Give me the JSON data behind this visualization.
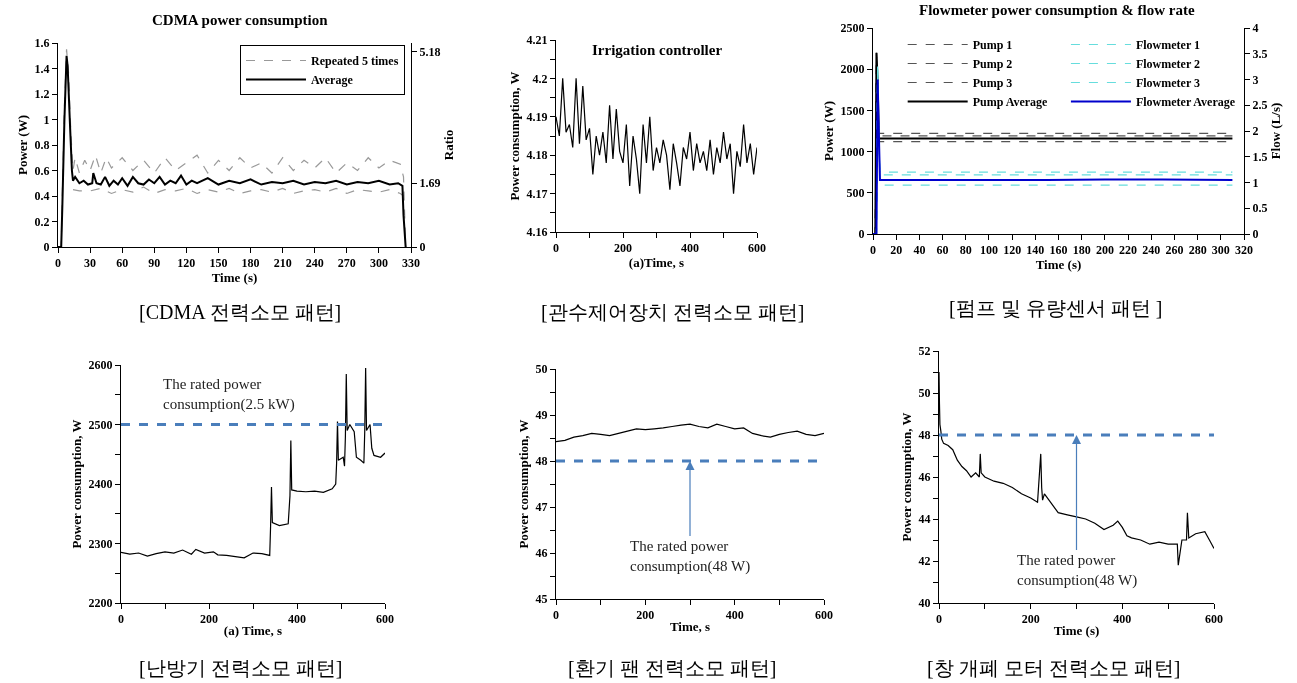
{
  "chart_data": [
    {
      "type": "line",
      "title": "CDMA power consumption",
      "xlabel": "Time (s)",
      "ylabel": "Power (W)",
      "y2label": "Ratio",
      "xlim": [
        0,
        330
      ],
      "xticks": [
        0,
        30,
        60,
        90,
        120,
        150,
        180,
        210,
        240,
        270,
        300,
        330
      ],
      "ylim": [
        0,
        1.6
      ],
      "yticks": [
        0,
        0.2,
        0.4,
        0.6,
        0.8,
        1,
        1.2,
        1.4,
        1.6
      ],
      "y2lim": [
        0,
        5.408
      ],
      "y2ticks": [
        0,
        1.69,
        5.18
      ],
      "legend": "top right",
      "annotations": [
        "[CDMA 전력소모 패턴]"
      ],
      "series": [
        {
          "name": "Repeated 5 times",
          "color": "#999999",
          "line_style": "dashed",
          "x": [
            0,
            3,
            4,
            6,
            8,
            10,
            12,
            14,
            16,
            20,
            25,
            30,
            35,
            40,
            45,
            50,
            60,
            70,
            80,
            90,
            100,
            110,
            120,
            130,
            140,
            150,
            160,
            170,
            180,
            190,
            200,
            210,
            220,
            230,
            240,
            250,
            260,
            270,
            280,
            290,
            300,
            310,
            320,
            323,
            325
          ],
          "values": [
            0,
            0,
            0.4,
            1.1,
            1.55,
            1.35,
            0.9,
            0.6,
            0.7,
            0.58,
            0.68,
            0.6,
            0.72,
            0.58,
            0.7,
            0.62,
            0.7,
            0.6,
            0.68,
            0.58,
            0.7,
            0.6,
            0.66,
            0.72,
            0.58,
            0.68,
            0.6,
            0.7,
            0.62,
            0.66,
            0.58,
            0.7,
            0.6,
            0.68,
            0.62,
            0.7,
            0.58,
            0.66,
            0.6,
            0.7,
            0.62,
            0.68,
            0.65,
            0.55,
            0
          ]
        },
        {
          "color": "#999999",
          "line_style": "dashed",
          "x": [
            14,
            20,
            30,
            40,
            50,
            60,
            70,
            80,
            90,
            100,
            110,
            120,
            130,
            140,
            150,
            160,
            170,
            180,
            190,
            200,
            210,
            220,
            230,
            240,
            250,
            260,
            270,
            280,
            290,
            300,
            310,
            320,
            323
          ],
          "values": [
            0.45,
            0.44,
            0.44,
            0.46,
            0.42,
            0.45,
            0.43,
            0.47,
            0.42,
            0.45,
            0.44,
            0.46,
            0.42,
            0.45,
            0.43,
            0.46,
            0.42,
            0.44,
            0.45,
            0.43,
            0.46,
            0.42,
            0.44,
            0.45,
            0.43,
            0.46,
            0.42,
            0.45,
            0.44,
            0.43,
            0.45,
            0.42,
            0.4
          ]
        },
        {
          "name": "Average",
          "color": "#000000",
          "line_style": "solid",
          "x": [
            0,
            3,
            4,
            6,
            8,
            9,
            11,
            13,
            14,
            16,
            20,
            24,
            28,
            32,
            33,
            36,
            40,
            44,
            48,
            52,
            56,
            60,
            65,
            70,
            75,
            80,
            85,
            90,
            95,
            100,
            105,
            110,
            115,
            120,
            125,
            130,
            140,
            150,
            160,
            170,
            180,
            190,
            200,
            210,
            220,
            230,
            240,
            250,
            260,
            270,
            280,
            290,
            300,
            310,
            318,
            322,
            323,
            325
          ],
          "values": [
            0,
            0,
            0.3,
            1.0,
            1.5,
            1.42,
            1.0,
            0.6,
            0.52,
            0.55,
            0.5,
            0.52,
            0.49,
            0.5,
            0.58,
            0.5,
            0.49,
            0.55,
            0.48,
            0.52,
            0.49,
            0.54,
            0.48,
            0.55,
            0.5,
            0.49,
            0.53,
            0.5,
            0.55,
            0.49,
            0.52,
            0.5,
            0.56,
            0.49,
            0.52,
            0.5,
            0.54,
            0.49,
            0.52,
            0.5,
            0.53,
            0.49,
            0.51,
            0.5,
            0.52,
            0.49,
            0.51,
            0.5,
            0.52,
            0.49,
            0.51,
            0.5,
            0.52,
            0.49,
            0.5,
            0.48,
            0.25,
            0
          ]
        }
      ]
    },
    {
      "type": "line",
      "title": "Irrigation controller",
      "xlabel": "(a)Time, s",
      "ylabel": "Power consumption, W",
      "xlim": [
        0,
        600
      ],
      "xticks": [
        0,
        {
          "value": 100,
          "label": null
        },
        200,
        {
          "value": 300,
          "label": null
        },
        400,
        {
          "value": 500,
          "label": null
        },
        600
      ],
      "ylim": [
        4.16,
        4.21
      ],
      "yticks": [
        4.16,
        {
          "value": 4.165,
          "label": null
        },
        4.17,
        {
          "value": 4.175,
          "label": null
        },
        4.18,
        {
          "value": 4.185,
          "label": null
        },
        4.19,
        {
          "value": 4.195,
          "label": null
        },
        4.2,
        {
          "value": 4.205,
          "label": null
        },
        4.21
      ],
      "annotations": [
        "[관수제어장치 전력소모 패턴]"
      ],
      "series": [
        {
          "color": "#000000",
          "line_style": "solid",
          "x": [
            0,
            10,
            20,
            30,
            40,
            50,
            60,
            70,
            80,
            90,
            100,
            110,
            120,
            130,
            140,
            150,
            160,
            170,
            180,
            190,
            200,
            210,
            220,
            230,
            240,
            250,
            260,
            270,
            280,
            290,
            300,
            310,
            320,
            330,
            340,
            350,
            360,
            370,
            380,
            390,
            400,
            410,
            420,
            430,
            440,
            450,
            460,
            470,
            480,
            490,
            500,
            510,
            520,
            530,
            540,
            550,
            560,
            570,
            580,
            590,
            600
          ],
          "values": [
            4.19,
            4.185,
            4.2,
            4.186,
            4.188,
            4.182,
            4.2,
            4.183,
            4.198,
            4.184,
            4.187,
            4.175,
            4.185,
            4.18,
            4.186,
            4.178,
            4.193,
            4.179,
            4.192,
            4.181,
            4.178,
            4.188,
            4.172,
            4.185,
            4.179,
            4.17,
            4.188,
            4.178,
            4.19,
            4.176,
            4.182,
            4.178,
            4.184,
            4.18,
            4.171,
            4.183,
            4.178,
            4.172,
            4.182,
            4.179,
            4.186,
            4.176,
            4.183,
            4.178,
            4.181,
            4.176,
            4.184,
            4.175,
            4.182,
            4.178,
            4.186,
            4.179,
            4.183,
            4.17,
            4.181,
            4.177,
            4.188,
            4.178,
            4.183,
            4.175,
            4.182
          ]
        }
      ]
    },
    {
      "type": "line",
      "title": "Flowmeter power consumption & flow rate",
      "xlabel": "Time (s)",
      "ylabel": "Power (W)",
      "y2label": "Flow (L/s)",
      "xlim": [
        0,
        320
      ],
      "xticks": [
        0,
        20,
        40,
        60,
        80,
        100,
        120,
        140,
        160,
        180,
        200,
        220,
        240,
        260,
        280,
        300,
        320
      ],
      "ylim": [
        0,
        2500
      ],
      "yticks": [
        0,
        500,
        1000,
        1500,
        2000,
        2500
      ],
      "y2lim": [
        0,
        4
      ],
      "y2ticks": [
        0,
        0.5,
        1,
        1.5,
        2,
        2.5,
        3,
        3.5,
        4
      ],
      "legend": "top",
      "annotations": [
        "[펌프 및 유량센서 패턴 ]"
      ],
      "series": [
        {
          "name": "Pump 1",
          "color": "#555555",
          "line_style": "dashed",
          "x": [
            0,
            2,
            3,
            4,
            5,
            6,
            10,
            40,
            70,
            100,
            130,
            160,
            190,
            220,
            250,
            280,
            310
          ],
          "values": [
            0,
            0,
            2150,
            1900,
            1230,
            1220,
            1220,
            1220,
            1220,
            1220,
            1220,
            1220,
            1220,
            1220,
            1220,
            1220,
            1220
          ]
        },
        {
          "name": "Pump 2",
          "color": "#555555",
          "line_style": "dashed",
          "x": [
            0,
            2,
            3,
            4,
            5,
            6,
            10,
            40,
            70,
            100,
            130,
            160,
            190,
            220,
            250,
            280,
            310
          ],
          "values": [
            0,
            0,
            2200,
            1850,
            1200,
            1190,
            1190,
            1190,
            1190,
            1190,
            1190,
            1190,
            1190,
            1190,
            1190,
            1190,
            1190
          ]
        },
        {
          "name": "Pump 3",
          "color": "#555555",
          "line_style": "dashed",
          "x": [
            0,
            2,
            3,
            4,
            5,
            6,
            10,
            40,
            70,
            100,
            130,
            160,
            190,
            220,
            250,
            280,
            310
          ],
          "values": [
            0,
            0,
            2100,
            1800,
            1130,
            1120,
            1120,
            1120,
            1120,
            1120,
            1120,
            1120,
            1120,
            1120,
            1120,
            1120,
            1120
          ]
        },
        {
          "name": "Pump Average",
          "color": "#000000",
          "line_style": "solid",
          "x": [
            0,
            2,
            3,
            4,
            5,
            6,
            10,
            40,
            70,
            100,
            130,
            160,
            190,
            220,
            250,
            280,
            310
          ],
          "values": [
            0,
            0,
            2200,
            1850,
            1160,
            1160,
            1160,
            1160,
            1160,
            1160,
            1160,
            1160,
            1160,
            1160,
            1160,
            1160,
            1160
          ]
        },
        {
          "name": "Flowmeter 1",
          "color": "#66dddd",
          "line_style": "dashed",
          "axis": "y2",
          "x": [
            0,
            3,
            4,
            5,
            6,
            7,
            50,
            100,
            150,
            200,
            250,
            310
          ],
          "values": [
            0,
            0,
            3.3,
            2.0,
            1.15,
            1.15,
            1.15,
            1.15,
            1.15,
            1.15,
            1.15,
            1.15
          ]
        },
        {
          "name": "Flowmeter 2",
          "color": "#66dddd",
          "line_style": "dashed",
          "axis": "y2",
          "x": [
            0,
            3,
            4,
            5,
            6,
            7,
            50,
            100,
            150,
            200,
            250,
            310
          ],
          "values": [
            0,
            0,
            3.2,
            1.9,
            1.0,
            0.95,
            0.95,
            0.95,
            0.95,
            0.95,
            0.95,
            0.95
          ]
        },
        {
          "name": "Flowmeter 3",
          "color": "#66dddd",
          "line_style": "dashed",
          "axis": "y2",
          "x": [
            0,
            3,
            4,
            5,
            6,
            7,
            50,
            100,
            150,
            200,
            250,
            310
          ],
          "values": [
            0,
            0,
            3.1,
            1.8,
            1.2,
            1.2,
            1.2,
            1.2,
            1.2,
            1.2,
            1.2,
            1.2
          ]
        },
        {
          "name": "Flowmeter Average",
          "color": "#0000cc",
          "line_style": "solid",
          "axis": "y2",
          "x": [
            0,
            3,
            4,
            5,
            6,
            7,
            50,
            100,
            150,
            200,
            250,
            310
          ],
          "values": [
            0,
            0,
            3.0,
            2.0,
            1.05,
            1.05,
            1.05,
            1.05,
            1.05,
            1.06,
            1.06,
            1.05
          ]
        }
      ]
    },
    {
      "type": "line",
      "xlabel": "(a) Time, s",
      "ylabel": "Power consumption, W",
      "xlim": [
        0,
        600
      ],
      "xticks": [
        0,
        {
          "value": 100,
          "label": null
        },
        200,
        {
          "value": 300,
          "label": null
        },
        400,
        {
          "value": 500,
          "label": null
        },
        600
      ],
      "ylim": [
        2200,
        2600
      ],
      "yticks": [
        2200,
        {
          "value": 2250,
          "label": null
        },
        2300,
        {
          "value": 2350,
          "label": null
        },
        2400,
        {
          "value": 2450,
          "label": null
        },
        2500,
        {
          "value": 2550,
          "label": null
        },
        2600
      ],
      "ref_lines": [
        {
          "axis": "y",
          "value": 2500,
          "label": "The rated power\nconsumption(2.5 kW)",
          "color": "#4a7ebb",
          "line_style": "dashed"
        }
      ],
      "annotations": [
        "[난방기 전력소모 패턴]"
      ],
      "series": [
        {
          "color": "#000000",
          "line_style": "solid",
          "x": [
            0,
            20,
            40,
            60,
            80,
            100,
            120,
            140,
            160,
            170,
            190,
            210,
            220,
            240,
            260,
            280,
            300,
            320,
            338,
            340,
            342,
            344,
            360,
            380,
            384,
            386,
            388,
            400,
            420,
            440,
            460,
            480,
            488,
            490,
            492,
            494,
            505,
            508,
            510,
            512,
            514,
            520,
            530,
            535,
            545,
            552,
            554,
            556,
            558,
            566,
            570,
            575,
            590,
            600
          ],
          "values": [
            2285,
            2282,
            2284,
            2279,
            2283,
            2286,
            2284,
            2289,
            2282,
            2290,
            2284,
            2286,
            2281,
            2280,
            2278,
            2276,
            2284,
            2283,
            2280,
            2330,
            2395,
            2335,
            2330,
            2333,
            2380,
            2473,
            2390,
            2388,
            2387,
            2388,
            2386,
            2392,
            2400,
            2435,
            2505,
            2440,
            2445,
            2430,
            2480,
            2585,
            2490,
            2500,
            2488,
            2445,
            2440,
            2435,
            2490,
            2595,
            2490,
            2500,
            2460,
            2448,
            2445,
            2452
          ]
        }
      ]
    },
    {
      "type": "line",
      "xlabel": "Time, s",
      "ylabel": "Power consumption, W",
      "xlim": [
        0,
        600
      ],
      "xticks": [
        0,
        {
          "value": 100,
          "label": null
        },
        200,
        {
          "value": 300,
          "label": null
        },
        400,
        {
          "value": 500,
          "label": null
        },
        600
      ],
      "ylim": [
        45,
        50
      ],
      "yticks": [
        45,
        {
          "value": 45.5,
          "label": null
        },
        46,
        {
          "value": 46.5,
          "label": null
        },
        47,
        {
          "value": 47.5,
          "label": null
        },
        48,
        {
          "value": 48.5,
          "label": null
        },
        49,
        {
          "value": 49.5,
          "label": null
        },
        50
      ],
      "ref_lines": [
        {
          "axis": "y",
          "value": 48,
          "color": "#4a7ebb",
          "line_style": "dashed"
        }
      ],
      "annotations": [
        {
          "text": "The rated power\nconsumption(48 W)",
          "x": 300,
          "y": 48
        },
        "[환기 팬 전력소모 패턴]"
      ],
      "series": [
        {
          "color": "#000000",
          "line_style": "solid",
          "x": [
            0,
            20,
            40,
            60,
            80,
            100,
            120,
            140,
            160,
            180,
            200,
            220,
            240,
            260,
            280,
            300,
            320,
            340,
            360,
            380,
            400,
            420,
            440,
            460,
            480,
            500,
            520,
            540,
            560,
            580,
            600
          ],
          "values": [
            48.42,
            48.45,
            48.52,
            48.55,
            48.6,
            48.58,
            48.55,
            48.6,
            48.65,
            48.7,
            48.68,
            48.7,
            48.72,
            48.75,
            48.78,
            48.8,
            48.75,
            48.72,
            48.8,
            48.75,
            48.7,
            48.72,
            48.6,
            48.55,
            48.52,
            48.58,
            48.62,
            48.65,
            48.58,
            48.55,
            48.6
          ]
        }
      ]
    },
    {
      "type": "line",
      "xlabel": "Time (s)",
      "ylabel": "Power consumption, W",
      "xlim": [
        0,
        600
      ],
      "xticks": [
        0,
        {
          "value": 100,
          "label": null
        },
        200,
        {
          "value": 300,
          "label": null
        },
        400,
        {
          "value": 500,
          "label": null
        },
        600
      ],
      "ylim": [
        40,
        52
      ],
      "yticks": [
        40,
        {
          "value": 41,
          "label": null
        },
        42,
        {
          "value": 43,
          "label": null
        },
        44,
        {
          "value": 45,
          "label": null
        },
        46,
        {
          "value": 47,
          "label": null
        },
        48,
        {
          "value": 49,
          "label": null
        },
        50,
        {
          "value": 51,
          "label": null
        },
        52
      ],
      "ref_lines": [
        {
          "axis": "y",
          "value": 48,
          "color": "#4a7ebb",
          "line_style": "dashed"
        }
      ],
      "annotations": [
        {
          "text": "The rated power\nconsumption(48 W)",
          "x": 300,
          "y": 48
        },
        "[창 개폐 모터 전력소모 패턴]"
      ],
      "series": [
        {
          "color": "#000000",
          "line_style": "solid",
          "x": [
            0,
            1,
            2,
            4,
            6,
            10,
            20,
            30,
            40,
            50,
            60,
            70,
            80,
            88,
            90,
            92,
            100,
            120,
            140,
            160,
            180,
            200,
            215,
            222,
            224,
            226,
            230,
            240,
            260,
            280,
            300,
            320,
            340,
            360,
            380,
            390,
            400,
            410,
            420,
            440,
            460,
            480,
            500,
            520,
            522,
            530,
            540,
            542,
            545,
            560,
            580,
            590,
            600
          ],
          "values": [
            51,
            49.5,
            48.5,
            48.2,
            47.8,
            47.6,
            47.5,
            47.3,
            46.8,
            46.5,
            46.3,
            46.0,
            46.2,
            46.0,
            47.1,
            46.2,
            46.0,
            45.8,
            45.7,
            45.5,
            45.2,
            45.0,
            44.8,
            47.1,
            45.5,
            44.9,
            45.2,
            44.9,
            44.3,
            44.2,
            44.1,
            44.0,
            43.8,
            43.5,
            43.7,
            43.9,
            43.6,
            43.2,
            43.1,
            43.0,
            42.8,
            42.9,
            42.8,
            42.8,
            41.8,
            43.0,
            43.0,
            44.3,
            43.1,
            43.3,
            43.4,
            43.0,
            42.6
          ]
        }
      ]
    }
  ]
}
